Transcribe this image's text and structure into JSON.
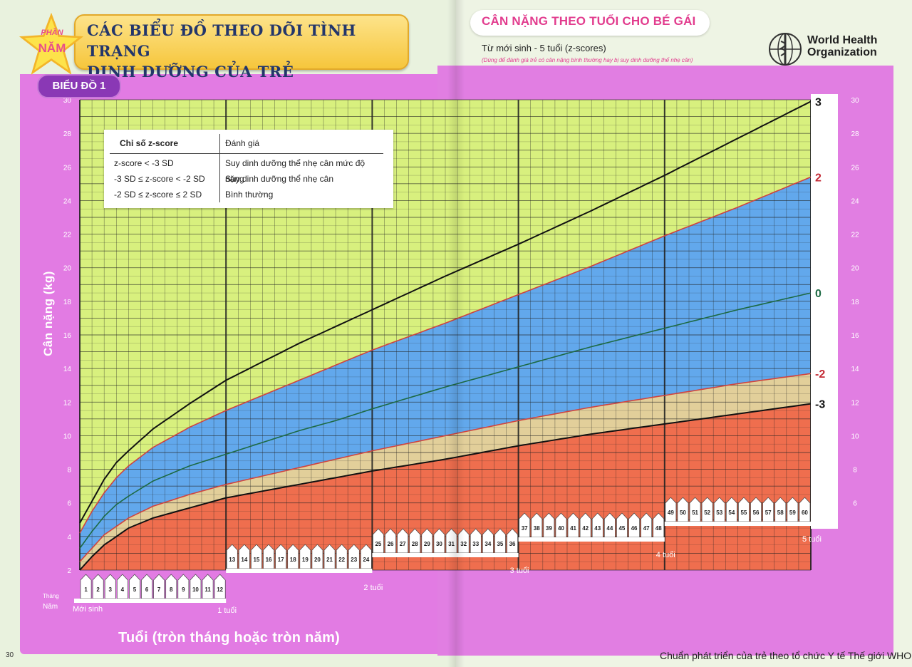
{
  "header": {
    "title_line1": "CÁC BIỂU ĐỒ THEO DÕI TÌNH TRẠNG",
    "title_line2": "DINH DƯỠNG CỦA TRẺ",
    "part_small": "PHẦN",
    "part_big": "NĂM",
    "chart_tag": "BIỂU ĐỒ 1"
  },
  "right_header": {
    "title": "CÂN NẶNG THEO TUỔI CHO BÉ GÁI",
    "subtitle": "Từ mới sinh - 5 tuổi (z-scores)",
    "note": "(Dùng để đánh giá trẻ có cân nặng bình thường hay bị suy dinh dưỡng thể  nhẹ cân)",
    "who_line1": "World Health",
    "who_line2": "Organization"
  },
  "legend": {
    "header_left": "Chỉ số z-score",
    "header_right": "Đánh giá",
    "rows": [
      {
        "range": "z-score < -3 SD",
        "label": "Suy dinh dưỡng thể nhẹ cân mức độ nặng",
        "color": "#ef6e4e"
      },
      {
        "range": "-3 SD ≤ z-score < -2 SD",
        "label": "Suy dinh dưỡng thể nhẹ cân",
        "color": "#e2cf9a"
      },
      {
        "range": "-2 SD ≤ z-score ≤  2 SD",
        "label": "Bình thường",
        "color": "#62a8ec"
      }
    ]
  },
  "axes": {
    "ylabel": "Cân nặng (kg)",
    "xlabel": "Tuổi (tròn tháng hoặc tròn năm)",
    "thang_label": "Tháng",
    "nam_label": "Năm",
    "year_labels": [
      "Mới sinh",
      "1 tuổi",
      "2 tuổi",
      "3 tuổi",
      "4 tuổi",
      "5 tuổi"
    ]
  },
  "footer": {
    "page_number": "30",
    "text": "Chuẩn phát triển của trẻ theo tổ chức Y tế Thế giới WHO"
  },
  "colors": {
    "grid_bg": "#d8f07e",
    "normal": "#62a8ec",
    "mild": "#e2cf9a",
    "severe": "#ef6e4e",
    "line_3": "#111111",
    "line_2": "#d0433e",
    "line_0": "#1d6a44",
    "magenta": "#e27be3"
  },
  "chart_data": {
    "type": "line",
    "title": "CÂN NẶNG THEO TUỔI CHO BÉ GÁI",
    "xlabel": "Tuổi (tròn tháng hoặc tròn năm)",
    "ylabel": "Cân nặng (kg)",
    "xlim": [
      0,
      60
    ],
    "ylim": [
      2,
      30
    ],
    "y_ticks_left": [
      2,
      4,
      6,
      8,
      10,
      12,
      14,
      16,
      18,
      20,
      22,
      24,
      26,
      28,
      30
    ],
    "y_ticks_right": [
      6,
      8,
      10,
      12,
      14,
      16,
      18,
      20,
      22,
      24,
      26,
      28,
      30
    ],
    "x": [
      0,
      1,
      2,
      3,
      4,
      6,
      9,
      12,
      15,
      18,
      21,
      24,
      30,
      36,
      42,
      48,
      54,
      60
    ],
    "series": [
      {
        "name": "3",
        "values": [
          4.8,
          6.1,
          7.4,
          8.4,
          9.1,
          10.4,
          11.9,
          13.3,
          14.4,
          15.5,
          16.5,
          17.5,
          19.5,
          21.4,
          23.4,
          25.5,
          27.7,
          29.9
        ]
      },
      {
        "name": "2",
        "values": [
          4.2,
          5.5,
          6.6,
          7.5,
          8.2,
          9.3,
          10.5,
          11.5,
          12.4,
          13.3,
          14.2,
          15.1,
          16.7,
          18.4,
          20.1,
          21.9,
          23.6,
          25.4
        ]
      },
      {
        "name": "0",
        "values": [
          3.3,
          4.3,
          5.2,
          5.9,
          6.4,
          7.3,
          8.2,
          8.9,
          9.6,
          10.3,
          10.9,
          11.6,
          12.9,
          14.1,
          15.3,
          16.4,
          17.5,
          18.5
        ]
      },
      {
        "name": "-2",
        "values": [
          2.5,
          3.3,
          4.1,
          4.6,
          5.1,
          5.8,
          6.5,
          7.1,
          7.6,
          8.1,
          8.6,
          9.1,
          10.0,
          10.9,
          11.7,
          12.4,
          13.1,
          13.7
        ]
      },
      {
        "name": "-3",
        "values": [
          2.0,
          2.8,
          3.5,
          4.0,
          4.5,
          5.1,
          5.7,
          6.3,
          6.7,
          7.1,
          7.5,
          7.9,
          8.6,
          9.4,
          10.1,
          10.7,
          11.3,
          11.9
        ]
      }
    ],
    "bands": [
      {
        "from": "-3",
        "to": "-2",
        "label": "Suy dinh dưỡng thể nhẹ cân"
      },
      {
        "from": "-2",
        "to": "2",
        "label": "Bình thường"
      },
      {
        "to": "-3",
        "label": "Suy dinh dưỡng thể nhẹ cân mức độ nặng"
      }
    ],
    "month_labels": [
      "1",
      "2",
      "3",
      "4",
      "5",
      "6",
      "7",
      "8",
      "9",
      "10",
      "11",
      "12",
      "13",
      "14",
      "15",
      "16",
      "17",
      "18",
      "19",
      "20",
      "21",
      "22",
      "23",
      "24",
      "25",
      "26",
      "27",
      "28",
      "29",
      "30",
      "31",
      "32",
      "33",
      "34",
      "35",
      "36",
      "37",
      "38",
      "39",
      "40",
      "41",
      "42",
      "43",
      "44",
      "45",
      "46",
      "47",
      "48",
      "49",
      "50",
      "51",
      "52",
      "53",
      "54",
      "55",
      "56",
      "57",
      "58",
      "59",
      "60"
    ],
    "grid": true
  }
}
